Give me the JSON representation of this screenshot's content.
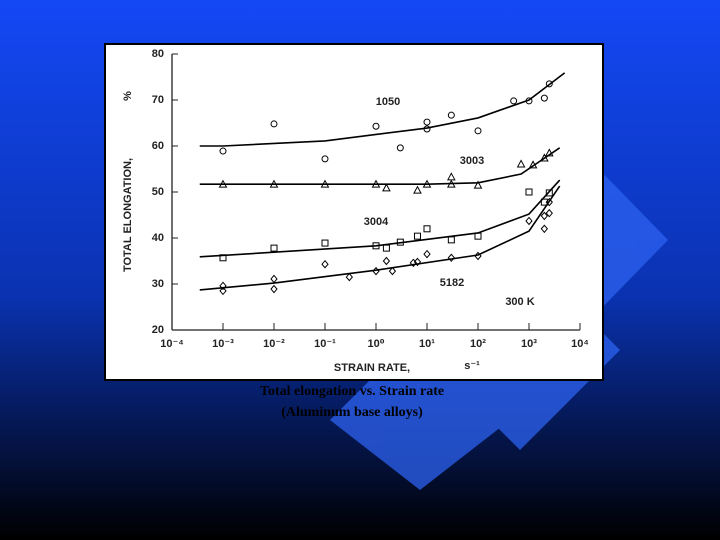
{
  "chart_data": {
    "type": "scatter",
    "ylabel": "TOTAL ELONGATION,",
    "yunit": "%",
    "xlabel": "STRAIN RATE,",
    "xunit": "s⁻¹",
    "annotation": "300 K",
    "caption": [
      "Total elongation vs. Strain rate",
      "(Aluminum base alloys)"
    ],
    "xscale": "log",
    "xlim": [
      0.0001,
      10000
    ],
    "xticks": [
      {
        "value": 0.0001,
        "label": "10⁻⁴"
      },
      {
        "value": 0.001,
        "label": "10⁻³"
      },
      {
        "value": 0.01,
        "label": "10⁻²"
      },
      {
        "value": 0.1,
        "label": "10⁻¹"
      },
      {
        "value": 1,
        "label": "10⁰"
      },
      {
        "value": 10,
        "label": "10¹"
      },
      {
        "value": 100,
        "label": "10²"
      },
      {
        "value": 1000,
        "label": "10³"
      },
      {
        "value": 10000,
        "label": "10⁴"
      }
    ],
    "ylim": [
      20,
      80
    ],
    "yticks": [
      20,
      30,
      40,
      50,
      60,
      70,
      80
    ],
    "series": [
      {
        "name": "1050",
        "marker": "circle",
        "color": "#000000",
        "x": [
          0.001,
          0.01,
          0.1,
          1,
          3,
          10,
          10,
          30,
          100,
          500,
          1000,
          2000,
          2500
        ],
        "values": [
          58.9,
          64.8,
          57.2,
          64.3,
          59.6,
          65.2,
          63.7,
          66.7,
          63.3,
          69.8,
          69.8,
          70.4,
          73.5
        ],
        "curve_x": [
          0.00035,
          0.001,
          0.1,
          10,
          100,
          1000,
          5000
        ],
        "curve_values": [
          60,
          60,
          61.1,
          63.9,
          66.1,
          70,
          75.9
        ]
      },
      {
        "name": "3003",
        "marker": "triangle",
        "color": "#000000",
        "x": [
          0.001,
          0.01,
          0.1,
          1,
          1.6,
          6.5,
          10,
          30,
          30,
          100,
          700,
          1200,
          2000,
          2500
        ],
        "values": [
          51.7,
          51.7,
          51.7,
          51.7,
          50.9,
          50.4,
          51.7,
          53.3,
          51.7,
          51.5,
          56.1,
          55.9,
          57.4,
          58.5
        ],
        "curve_x": [
          0.00035,
          10,
          100,
          700,
          4000
        ],
        "curve_values": [
          51.7,
          51.7,
          52.0,
          53.9,
          59.6
        ]
      },
      {
        "name": "3004",
        "marker": "square",
        "color": "#000000",
        "x": [
          0.001,
          0.01,
          0.1,
          1,
          1.6,
          3,
          6.5,
          10,
          30,
          100,
          1000,
          2000,
          2500
        ],
        "values": [
          35.7,
          37.8,
          38.9,
          38.3,
          37.8,
          39.1,
          40.4,
          42.0,
          39.6,
          40.4,
          50.0,
          47.8,
          49.8
        ],
        "curve_x": [
          0.00035,
          1,
          100,
          1000,
          4000
        ],
        "curve_values": [
          35.9,
          38.3,
          41.1,
          45.2,
          52.6
        ]
      },
      {
        "name": "5182",
        "marker": "diamond",
        "color": "#000000",
        "x": [
          0.001,
          0.001,
          0.01,
          0.01,
          0.1,
          0.3,
          1,
          1.6,
          2.1,
          5.4,
          6.5,
          10,
          30,
          100,
          1000,
          2000,
          2000,
          2500,
          2500
        ],
        "values": [
          29.6,
          28.5,
          31.1,
          28.9,
          34.3,
          31.5,
          32.8,
          35.0,
          32.8,
          34.6,
          34.8,
          36.5,
          35.7,
          36.1,
          43.7,
          42.0,
          44.8,
          47.8,
          45.4
        ],
        "curve_x": [
          0.00035,
          0.01,
          1,
          100,
          1000,
          4000
        ],
        "curve_values": [
          28.7,
          30.2,
          33.0,
          36.3,
          41.5,
          51.3
        ]
      }
    ]
  }
}
